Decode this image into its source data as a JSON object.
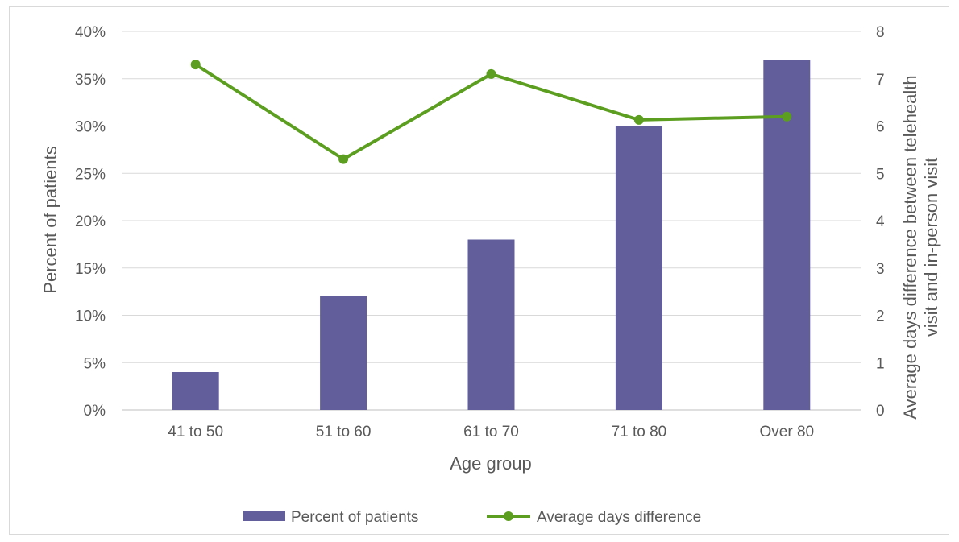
{
  "chart_data": {
    "type": "bar",
    "categories": [
      "41 to 50",
      "51 to 60",
      "61 to 70",
      "71 to 80",
      "Over 80"
    ],
    "xlabel": "Age group",
    "ylabel": "Percent of patients",
    "y2label_line1": "Average days difference between telehealth",
    "y2label_line2": "visit and in-person visit",
    "ylim": [
      0,
      40
    ],
    "y2lim": [
      0,
      8
    ],
    "yticks": [
      "0%",
      "5%",
      "10%",
      "15%",
      "20%",
      "25%",
      "30%",
      "35%",
      "40%"
    ],
    "y2ticks": [
      "0",
      "1",
      "2",
      "3",
      "4",
      "5",
      "6",
      "7",
      "8"
    ],
    "grid": true,
    "legend_position": "bottom",
    "series": [
      {
        "name": "Percent of patients",
        "type": "bar",
        "axis": "left",
        "color": "#625e9c",
        "values": [
          4,
          12,
          18,
          30,
          37
        ]
      },
      {
        "name": "Average days difference",
        "type": "line",
        "axis": "right",
        "color": "#5c9e1f",
        "values": [
          7.3,
          5.3,
          7.1,
          6.13,
          6.2
        ]
      }
    ]
  }
}
